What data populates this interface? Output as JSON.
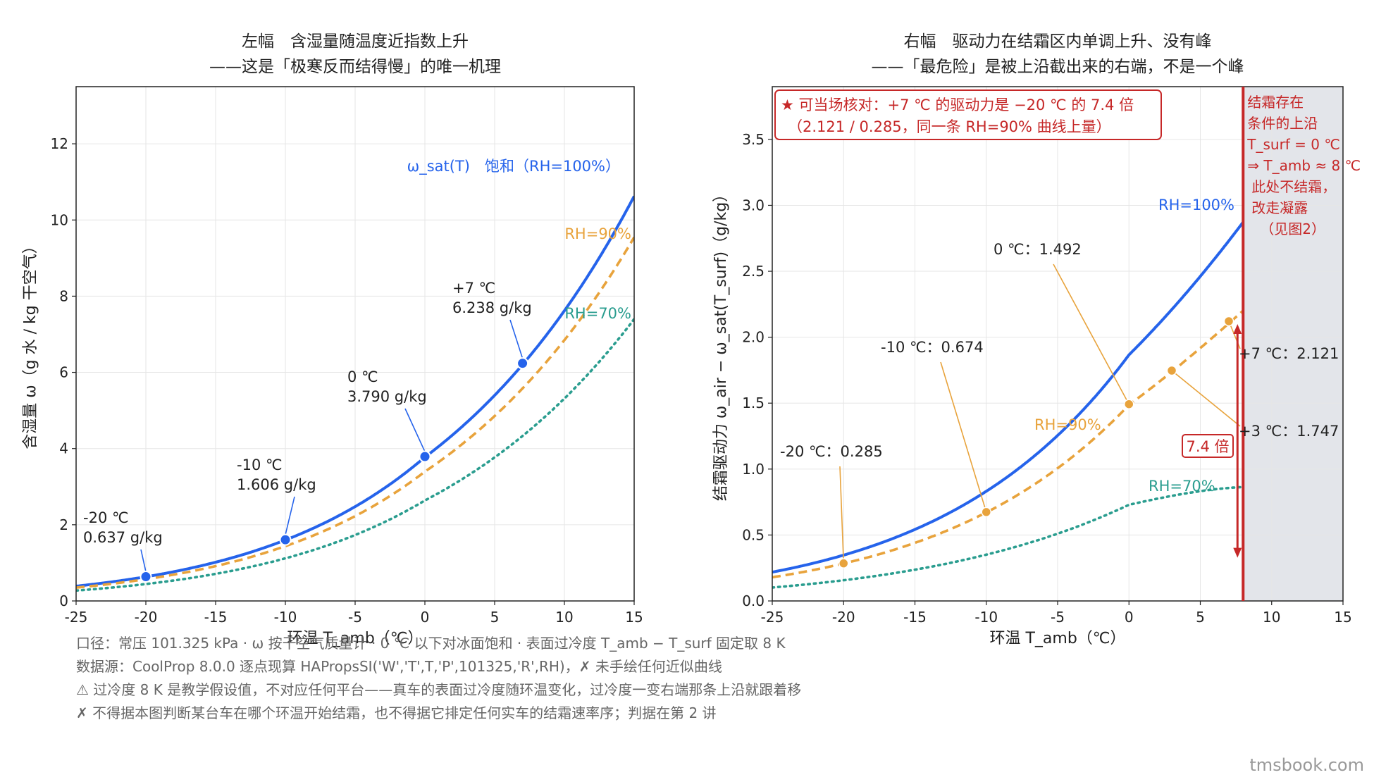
{
  "chart_data": [
    {
      "type": "line",
      "title": "左幅　含湿量随温度近指数上升",
      "subtitle": "——这是「极寒反而结得慢」的唯一机理",
      "xlabel": "环温 T_amb（℃）",
      "ylabel": "含湿量 ω（g 水 / kg 干空气）",
      "xlim": [
        -25,
        15
      ],
      "ylim": [
        0,
        13.5
      ],
      "x_ticks": [
        -25,
        -20,
        -15,
        -10,
        -5,
        0,
        5,
        10,
        15
      ],
      "y_ticks": [
        0,
        2,
        4,
        6,
        8,
        10,
        12
      ],
      "grid": true,
      "series": [
        {
          "name": "ω_sat(T)　饱和（RH=100%）",
          "rh": 1.0,
          "color": "#2563eb",
          "style": "solid"
        },
        {
          "name": "RH=90%",
          "rh": 0.9,
          "color": "#e8a33c",
          "style": "dashed"
        },
        {
          "name": "RH=70%",
          "rh": 0.7,
          "color": "#2a9d8f",
          "style": "dotted"
        }
      ],
      "markers": [
        {
          "x": -20,
          "y": 0.637,
          "label_line1": "-20 ℃",
          "label_line2": "0.637 g/kg"
        },
        {
          "x": -10,
          "y": 1.606,
          "label_line1": "-10 ℃",
          "label_line2": "1.606 g/kg"
        },
        {
          "x": 0,
          "y": 3.79,
          "label_line1": "0 ℃",
          "label_line2": "3.790 g/kg"
        },
        {
          "x": 7,
          "y": 6.238,
          "label_line1": "+7 ℃",
          "label_line2": "6.238 g/kg"
        }
      ]
    },
    {
      "type": "line",
      "title": "右幅　驱动力在结霜区内单调上升、没有峰",
      "subtitle": "——「最危险」是被上沿截出来的右端，不是一个峰",
      "xlabel": "环温 T_amb（℃）",
      "ylabel": "结霜驱动力 ω_air − ω_sat(T_surf)（g/kg）",
      "xlim": [
        -25,
        15
      ],
      "ylim": [
        0,
        3.9
      ],
      "x_ticks": [
        -25,
        -20,
        -15,
        -10,
        -5,
        0,
        5,
        10,
        15
      ],
      "y_ticks": [
        0.0,
        0.5,
        1.0,
        1.5,
        2.0,
        2.5,
        3.0,
        3.5
      ],
      "grid": true,
      "subcool_K": 8,
      "series": [
        {
          "name": "RH=100%",
          "rh": 1.0,
          "color": "#2563eb",
          "style": "solid"
        },
        {
          "name": "RH=90%",
          "rh": 0.9,
          "color": "#e8a33c",
          "style": "dashed"
        },
        {
          "name": "RH=70%",
          "rh": 0.7,
          "color": "#2a9d8f",
          "style": "dotted"
        }
      ],
      "markers": [
        {
          "x": -20,
          "y": 0.285,
          "label": "-20 ℃：0.285"
        },
        {
          "x": -10,
          "y": 0.674,
          "label": "-10 ℃：0.674"
        },
        {
          "x": 0,
          "y": 1.492,
          "label": "0 ℃：1.492"
        },
        {
          "x": 3,
          "y": 1.747,
          "label": "+3 ℃：1.747"
        },
        {
          "x": 7,
          "y": 2.121,
          "label": "+7 ℃：2.121"
        }
      ],
      "limit_x": 8,
      "shaded_region": {
        "from_x": 8,
        "to_x": 15
      },
      "limit_note": [
        "结霜存在",
        "条件的上沿",
        "T_surf = 0 ℃",
        "⇒ T_amb ≈ 8 ℃",
        "此处不结霜，",
        "改走凝露",
        "（见图2）"
      ],
      "callout": [
        "★ 可当场核对：+7 ℃ 的驱动力是 −20 ℃ 的 7.4 倍",
        "（2.121 / 0.285，同一条 RH=90% 曲线上量）"
      ],
      "ratio_label": "7.4 倍"
    }
  ],
  "footnotes": [
    "口径：常压 101.325 kPa  ·  ω 按干空气质量计  ·  0 ℃ 以下对冰面饱和  ·  表面过冷度 T_amb − T_surf 固定取 8 K",
    "数据源：CoolProp 8.0.0 逐点现算 HAPropsSI('W','T',T,'P',101325,'R',RH)，✗ 未手绘任何近似曲线",
    "⚠ 过冷度 8 K 是教学假设值，不对应任何平台——真车的表面过冷度随环温变化，过冷度一变右端那条上沿就跟着移",
    "✗ 不得据本图判断某台车在哪个环温开始结霜，也不得据它排定任何实车的结霜速率序；判据在第 2 讲"
  ],
  "watermark": "tmsbook.com"
}
